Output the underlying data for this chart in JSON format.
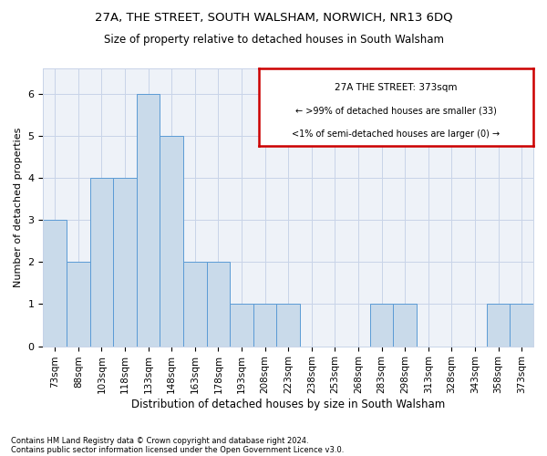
{
  "title1": "27A, THE STREET, SOUTH WALSHAM, NORWICH, NR13 6DQ",
  "title2": "Size of property relative to detached houses in South Walsham",
  "xlabel": "Distribution of detached houses by size in South Walsham",
  "ylabel": "Number of detached properties",
  "categories": [
    "73sqm",
    "88sqm",
    "103sqm",
    "118sqm",
    "133sqm",
    "148sqm",
    "163sqm",
    "178sqm",
    "193sqm",
    "208sqm",
    "223sqm",
    "238sqm",
    "253sqm",
    "268sqm",
    "283sqm",
    "298sqm",
    "313sqm",
    "328sqm",
    "343sqm",
    "358sqm",
    "373sqm"
  ],
  "values": [
    3,
    2,
    4,
    4,
    6,
    5,
    2,
    2,
    1,
    1,
    1,
    0,
    0,
    0,
    1,
    1,
    0,
    0,
    0,
    1,
    1
  ],
  "bar_color": "#c9daea",
  "bar_edge_color": "#5b9bd5",
  "box_text_line1": "27A THE STREET: 373sqm",
  "box_text_line2": "← >99% of detached houses are smaller (33)",
  "box_text_line3": "<1% of semi-detached houses are larger (0) →",
  "box_color": "#ffffff",
  "box_edge_color": "#cc0000",
  "grid_color": "#c8d4e8",
  "background_color": "#eef2f8",
  "footer1": "Contains HM Land Registry data © Crown copyright and database right 2024.",
  "footer2": "Contains public sector information licensed under the Open Government Licence v3.0.",
  "ylim": [
    0,
    6.6
  ],
  "yticks": [
    0,
    1,
    2,
    3,
    4,
    5,
    6
  ],
  "title1_fontsize": 9.5,
  "title2_fontsize": 8.5,
  "xlabel_fontsize": 8.5,
  "ylabel_fontsize": 8,
  "tick_fontsize": 7.5,
  "footer_fontsize": 6
}
